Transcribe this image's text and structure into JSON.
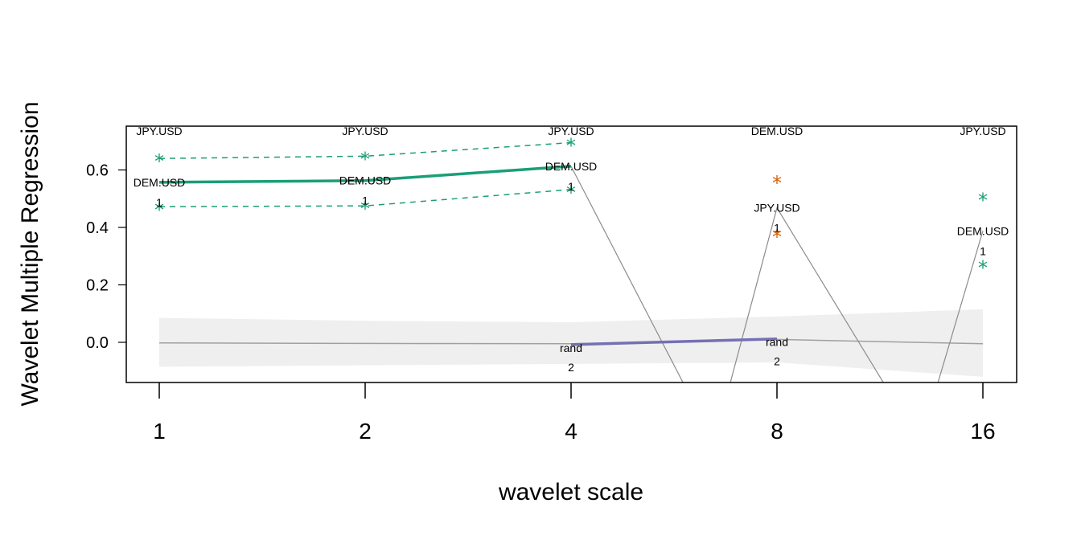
{
  "chart_data": {
    "type": "line",
    "xlabel": "wavelet scale",
    "ylabel": "Wavelet Multiple Regression",
    "x_ticks": [
      "1",
      "2",
      "4",
      "8",
      "16"
    ],
    "y_ticks": [
      "0.0",
      "0.2",
      "0.4",
      "0.6"
    ],
    "ylim": [
      -0.14,
      0.72
    ],
    "top_labels": [
      "JPY.USD",
      "JPY.USD",
      "JPY.USD",
      "DEM.USD",
      "JPY.USD"
    ],
    "points": [
      {
        "x": "1",
        "label": "DEM.USD",
        "n": "1",
        "y": 0.557,
        "upper": 0.64,
        "lower": 0.472,
        "color": "#1b9e77"
      },
      {
        "x": "2",
        "label": "DEM.USD",
        "n": "1",
        "y": 0.563,
        "upper": 0.648,
        "lower": 0.475,
        "color": "#1b9e77"
      },
      {
        "x": "4",
        "label": "DEM.USD",
        "n": "1",
        "y": 0.613,
        "upper": 0.695,
        "lower": 0.532,
        "color": "#1b9e77"
      },
      {
        "x": "8",
        "label": "JPY.USD",
        "n": "1",
        "y": 0.468,
        "upper": 0.565,
        "lower": 0.378,
        "color": "#d95f02"
      },
      {
        "x": "16",
        "label": "DEM.USD",
        "n": "1",
        "y": 0.388,
        "upper": 0.505,
        "lower": 0.27,
        "color": "#1b9e77"
      }
    ],
    "rand_points": [
      {
        "x": "4",
        "label": "rand",
        "n": "2",
        "y": -0.008
      },
      {
        "x": "8",
        "label": "rand",
        "n": "2",
        "y": 0.012
      }
    ],
    "null_band": {
      "center": [
        -0.002,
        -0.004,
        -0.005,
        0.01,
        -0.005
      ],
      "upper": [
        0.085,
        0.075,
        0.07,
        0.09,
        0.115
      ],
      "lower": [
        -0.085,
        -0.08,
        -0.075,
        -0.07,
        -0.12
      ]
    },
    "colors": {
      "green": "#1b9e77",
      "orange": "#d95f02",
      "purple": "#7570b3",
      "gray_line": "#8c8c8c",
      "band": "#efefef"
    }
  }
}
